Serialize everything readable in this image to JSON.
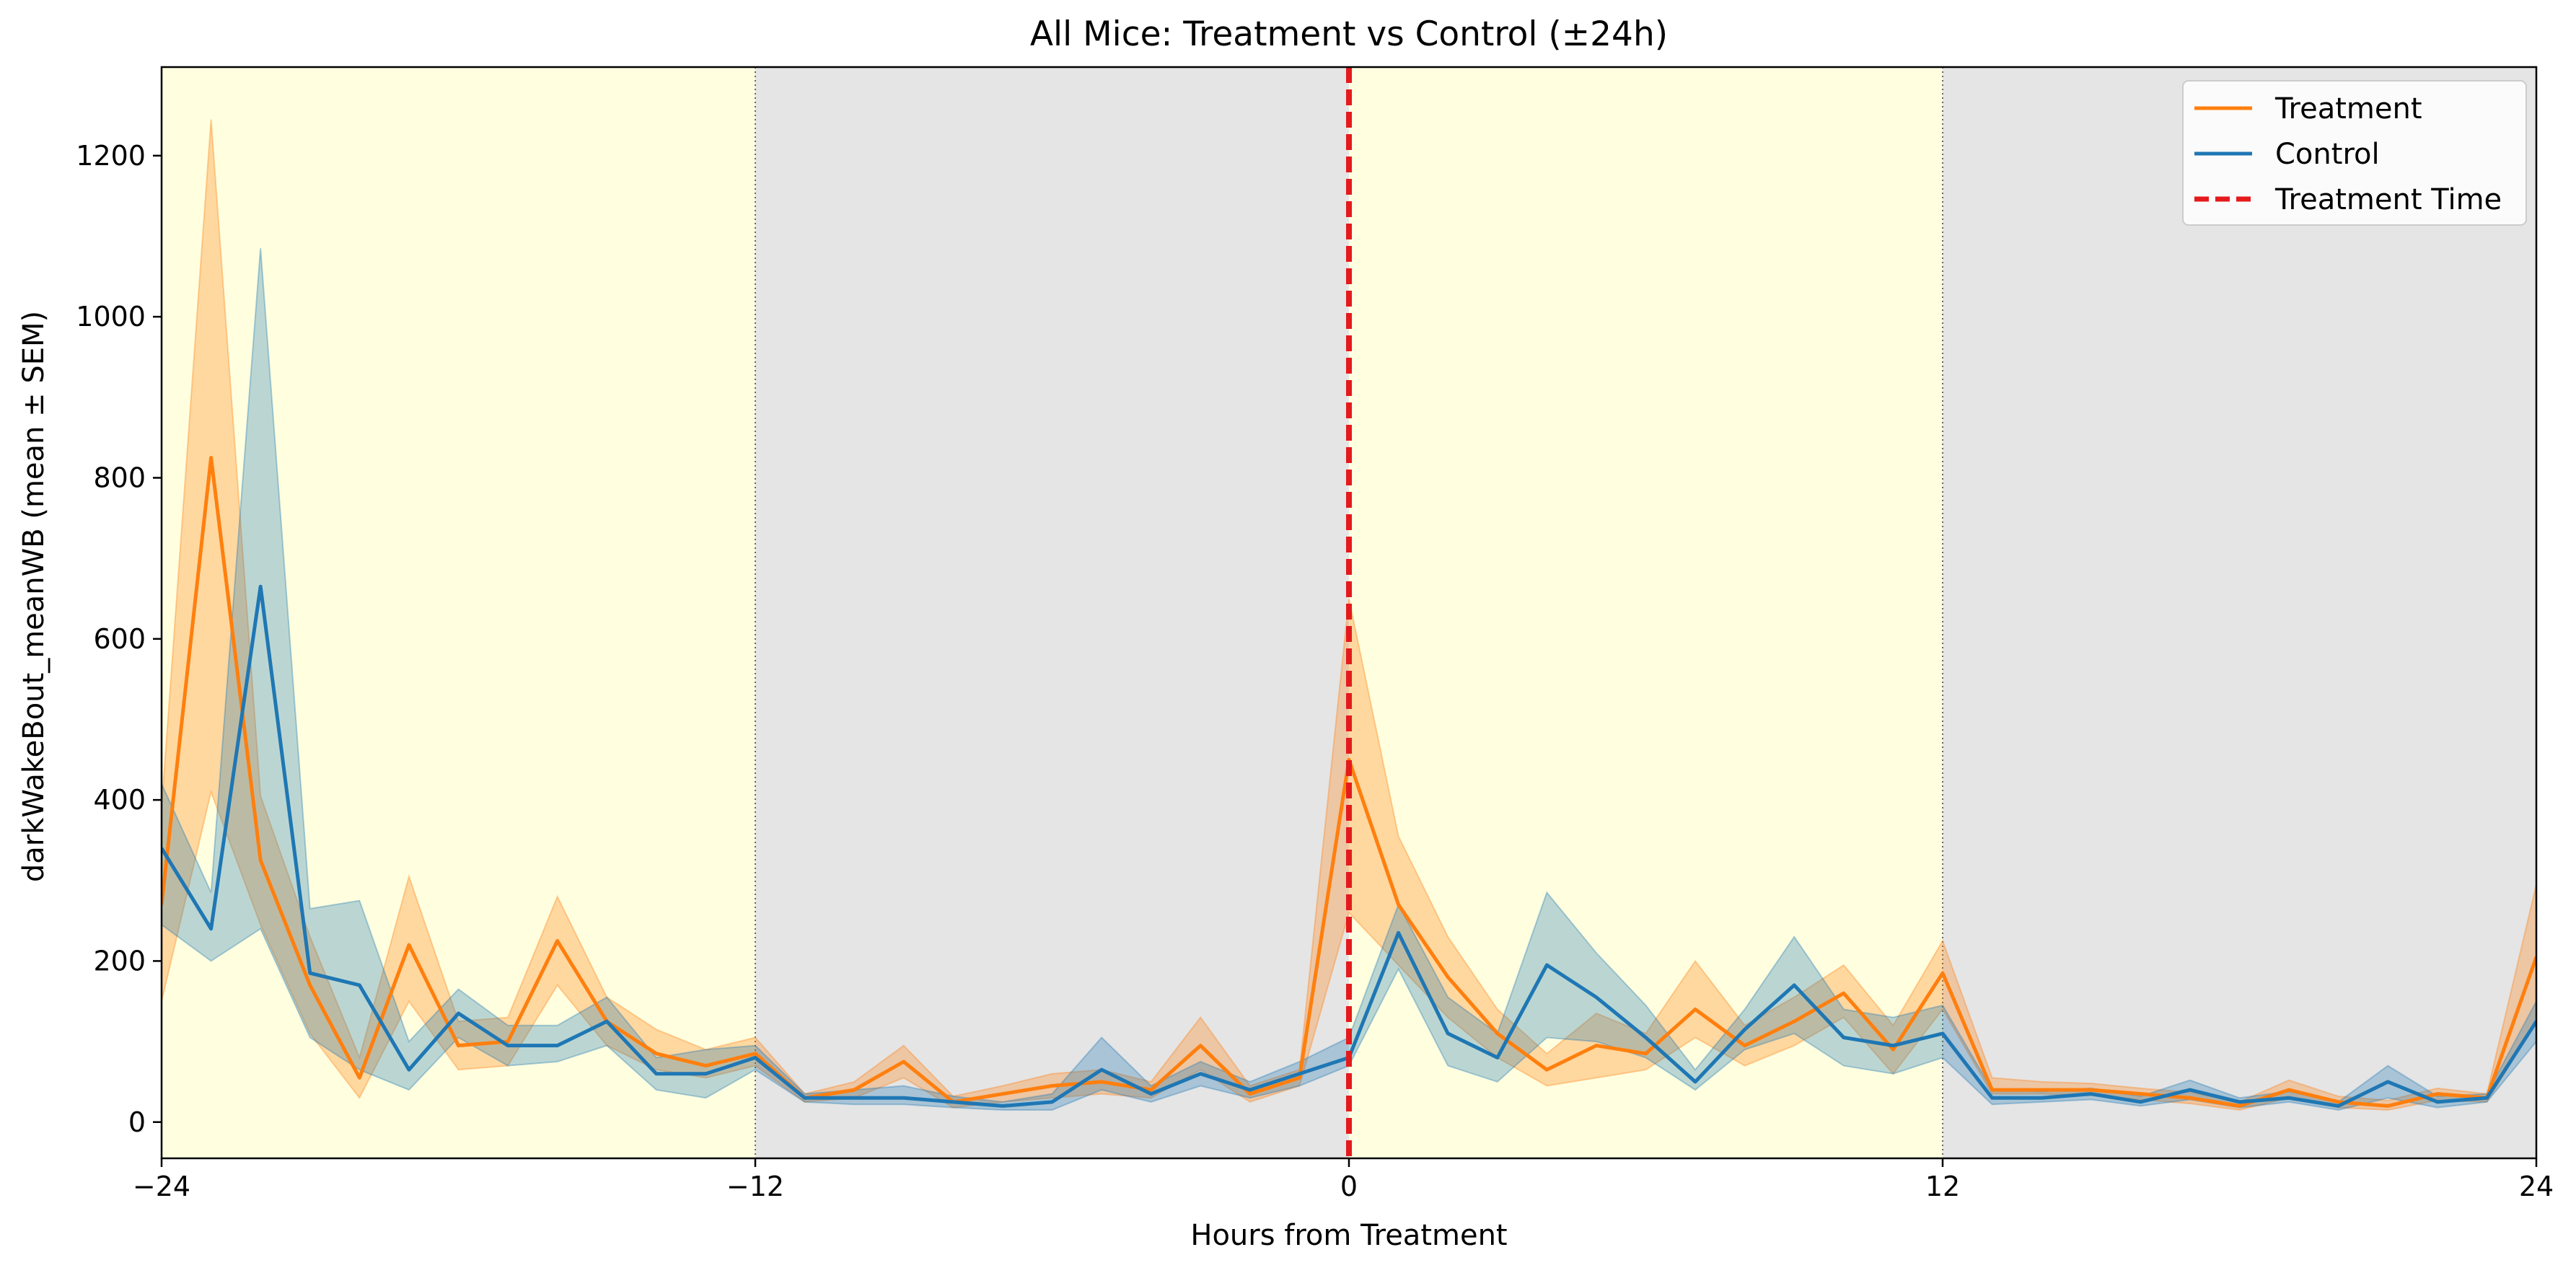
{
  "chart_data": {
    "type": "line",
    "title": "All Mice: Treatment vs Control (±24h)",
    "xlabel": "Hours from Treatment",
    "ylabel": "darkWakeBout_meanWB (mean ± SEM)",
    "xlim": [
      -24,
      24
    ],
    "ylim": [
      -45,
      1310
    ],
    "xticks": [
      -24,
      -12,
      0,
      12,
      24
    ],
    "xtick_labels": [
      "−24",
      "−12",
      "0",
      "12",
      "24"
    ],
    "yticks": [
      0,
      200,
      400,
      600,
      800,
      1000,
      1200
    ],
    "ytick_labels": [
      "0",
      "200",
      "400",
      "600",
      "800",
      "1000",
      "1200"
    ],
    "grid": false,
    "legend_position": "top-right",
    "background_bands": [
      {
        "x0": -24,
        "x1": -12,
        "phase": "light",
        "color": "#ffffe0"
      },
      {
        "x0": -12,
        "x1": 0,
        "phase": "dark",
        "color": "#e5e5e5"
      },
      {
        "x0": 0,
        "x1": 12,
        "phase": "light",
        "color": "#ffffe0"
      },
      {
        "x0": 12,
        "x1": 24,
        "phase": "dark",
        "color": "#e5e5e5"
      }
    ],
    "phase_boundaries": [
      -12,
      12
    ],
    "treatment_time": {
      "x": 0,
      "label": "Treatment Time",
      "color": "#e41a1c",
      "style": "dashed"
    },
    "x": [
      -24,
      -23,
      -22,
      -21,
      -20,
      -19,
      -18,
      -17,
      -16,
      -15,
      -14,
      -13,
      -12,
      -11,
      -10,
      -9,
      -8,
      -7,
      -6,
      -5,
      -4,
      -3,
      -2,
      -1,
      0,
      1,
      2,
      3,
      4,
      5,
      6,
      7,
      8,
      9,
      10,
      11,
      12,
      13,
      14,
      15,
      16,
      17,
      18,
      19,
      20,
      21,
      22,
      23,
      24
    ],
    "series": [
      {
        "name": "Treatment",
        "color": "#ff7f0e",
        "values": [
          270,
          825,
          325,
          170,
          55,
          220,
          95,
          100,
          225,
          125,
          85,
          70,
          85,
          30,
          40,
          75,
          25,
          35,
          45,
          50,
          40,
          95,
          35,
          55,
          450,
          270,
          180,
          110,
          65,
          95,
          85,
          140,
          95,
          125,
          160,
          90,
          185,
          40,
          40,
          40,
          35,
          30,
          20,
          40,
          25,
          20,
          35,
          30,
          205
        ],
        "sem_lower": [
          150,
          410,
          245,
          110,
          30,
          150,
          65,
          70,
          170,
          95,
          65,
          55,
          70,
          25,
          30,
          55,
          18,
          25,
          30,
          35,
          30,
          65,
          25,
          45,
          260,
          195,
          130,
          80,
          45,
          55,
          65,
          105,
          70,
          95,
          130,
          60,
          140,
          35,
          35,
          33,
          28,
          23,
          15,
          30,
          18,
          15,
          27,
          25,
          125
        ],
        "sem_upper": [
          390,
          1245,
          405,
          230,
          80,
          305,
          125,
          130,
          280,
          155,
          115,
          90,
          105,
          35,
          50,
          95,
          32,
          45,
          60,
          65,
          50,
          130,
          45,
          65,
          650,
          355,
          230,
          140,
          85,
          135,
          110,
          200,
          120,
          155,
          195,
          120,
          225,
          55,
          50,
          48,
          42,
          37,
          25,
          52,
          32,
          27,
          42,
          35,
          295
        ]
      },
      {
        "name": "Control",
        "color": "#1f77b4",
        "values": [
          340,
          240,
          665,
          185,
          170,
          65,
          135,
          95,
          95,
          125,
          60,
          60,
          80,
          30,
          30,
          30,
          25,
          20,
          25,
          65,
          35,
          60,
          40,
          60,
          80,
          235,
          110,
          80,
          195,
          155,
          105,
          50,
          115,
          170,
          105,
          95,
          110,
          30,
          30,
          35,
          25,
          40,
          25,
          30,
          20,
          50,
          25,
          30,
          125
        ],
        "sem_lower": [
          245,
          200,
          240,
          105,
          65,
          40,
          105,
          70,
          75,
          95,
          40,
          30,
          65,
          25,
          22,
          22,
          18,
          15,
          15,
          40,
          25,
          45,
          30,
          45,
          70,
          190,
          70,
          50,
          105,
          100,
          80,
          40,
          90,
          110,
          70,
          60,
          80,
          22,
          25,
          28,
          20,
          28,
          18,
          25,
          15,
          30,
          18,
          25,
          100
        ],
        "sem_upper": [
          420,
          285,
          1085,
          265,
          275,
          100,
          165,
          120,
          120,
          155,
          80,
          90,
          95,
          35,
          40,
          45,
          32,
          25,
          35,
          105,
          45,
          75,
          50,
          75,
          105,
          270,
          155,
          110,
          285,
          210,
          145,
          65,
          140,
          230,
          140,
          130,
          145,
          40,
          38,
          42,
          32,
          52,
          30,
          38,
          25,
          70,
          32,
          35,
          150
        ]
      }
    ]
  }
}
